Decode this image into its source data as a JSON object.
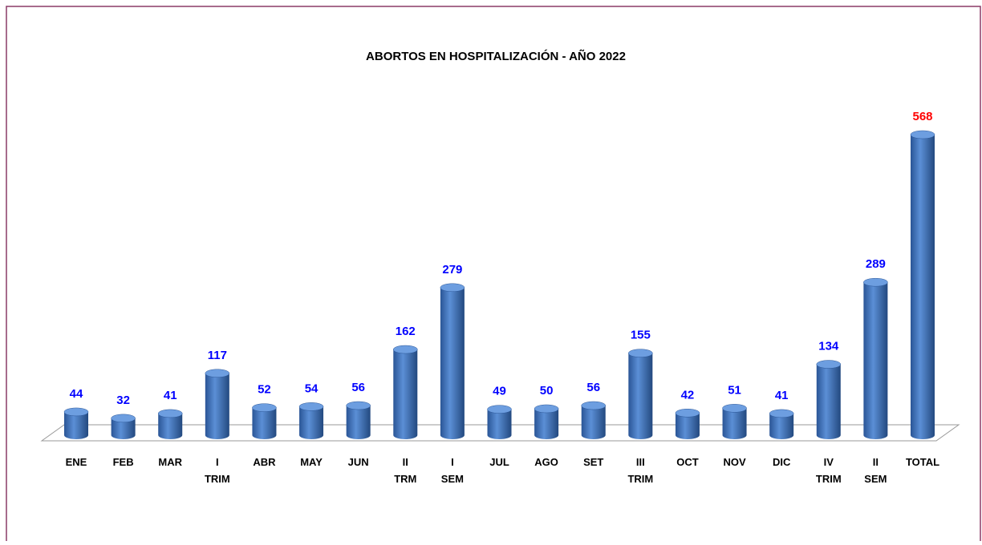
{
  "chart_data": {
    "type": "bar3d",
    "title": "ABORTOS EN HOSPITALIZACIÓN -  AÑO 2022",
    "categories": [
      "ENE",
      "FEB",
      "MAR",
      "I\nTRIM",
      "ABR",
      "MAY",
      "JUN",
      "II\nTRM",
      "I\nSEM",
      "JUL",
      "AGO",
      "SET",
      "III\nTRIM",
      "OCT",
      "NOV",
      "DIC",
      "IV\nTRIM",
      "II\nSEM",
      "TOTAL"
    ],
    "values": [
      44,
      32,
      41,
      117,
      52,
      54,
      56,
      162,
      279,
      49,
      50,
      56,
      155,
      42,
      51,
      41,
      134,
      289,
      568
    ],
    "color": "#3d72bd",
    "label_color": "#0000ff",
    "last_label_color": "#ff0000"
  }
}
